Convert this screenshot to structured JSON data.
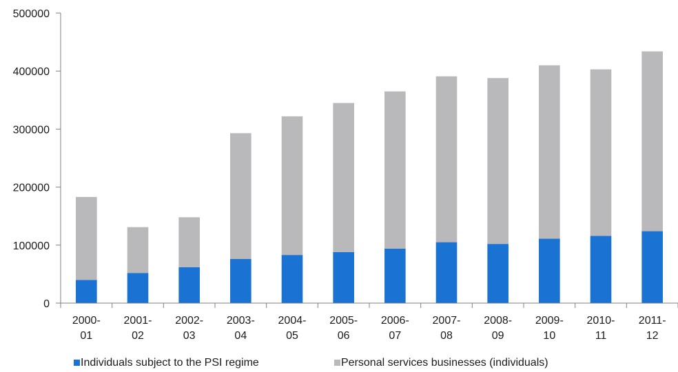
{
  "chart_data": {
    "type": "bar",
    "stacked": true,
    "categories": [
      [
        "2000-",
        "01"
      ],
      [
        "2001-",
        "02"
      ],
      [
        "2002-",
        "03"
      ],
      [
        "2003-",
        "04"
      ],
      [
        "2004-",
        "05"
      ],
      [
        "2005-",
        "06"
      ],
      [
        "2006-",
        "07"
      ],
      [
        "2007-",
        "08"
      ],
      [
        "2008-",
        "09"
      ],
      [
        "2009-",
        "10"
      ],
      [
        "2010-",
        "11"
      ],
      [
        "2011-",
        "12"
      ]
    ],
    "series": [
      {
        "name": "Individuals subject to the PSI regime",
        "color": "#1a73d3",
        "values": [
          40000,
          52000,
          62000,
          76000,
          83000,
          88000,
          94000,
          105000,
          102000,
          111000,
          116000,
          124000
        ]
      },
      {
        "name": "Personal services businesses (individuals)",
        "color": "#b9b9bb",
        "values": [
          143000,
          79000,
          86000,
          217000,
          239000,
          257000,
          271000,
          286000,
          286000,
          299000,
          287000,
          310000
        ]
      }
    ],
    "y_ticks": [
      "0",
      "100000",
      "200000",
      "300000",
      "400000",
      "500000"
    ],
    "ylim": [
      0,
      500000
    ],
    "grid": false,
    "legend_position": "bottom"
  }
}
